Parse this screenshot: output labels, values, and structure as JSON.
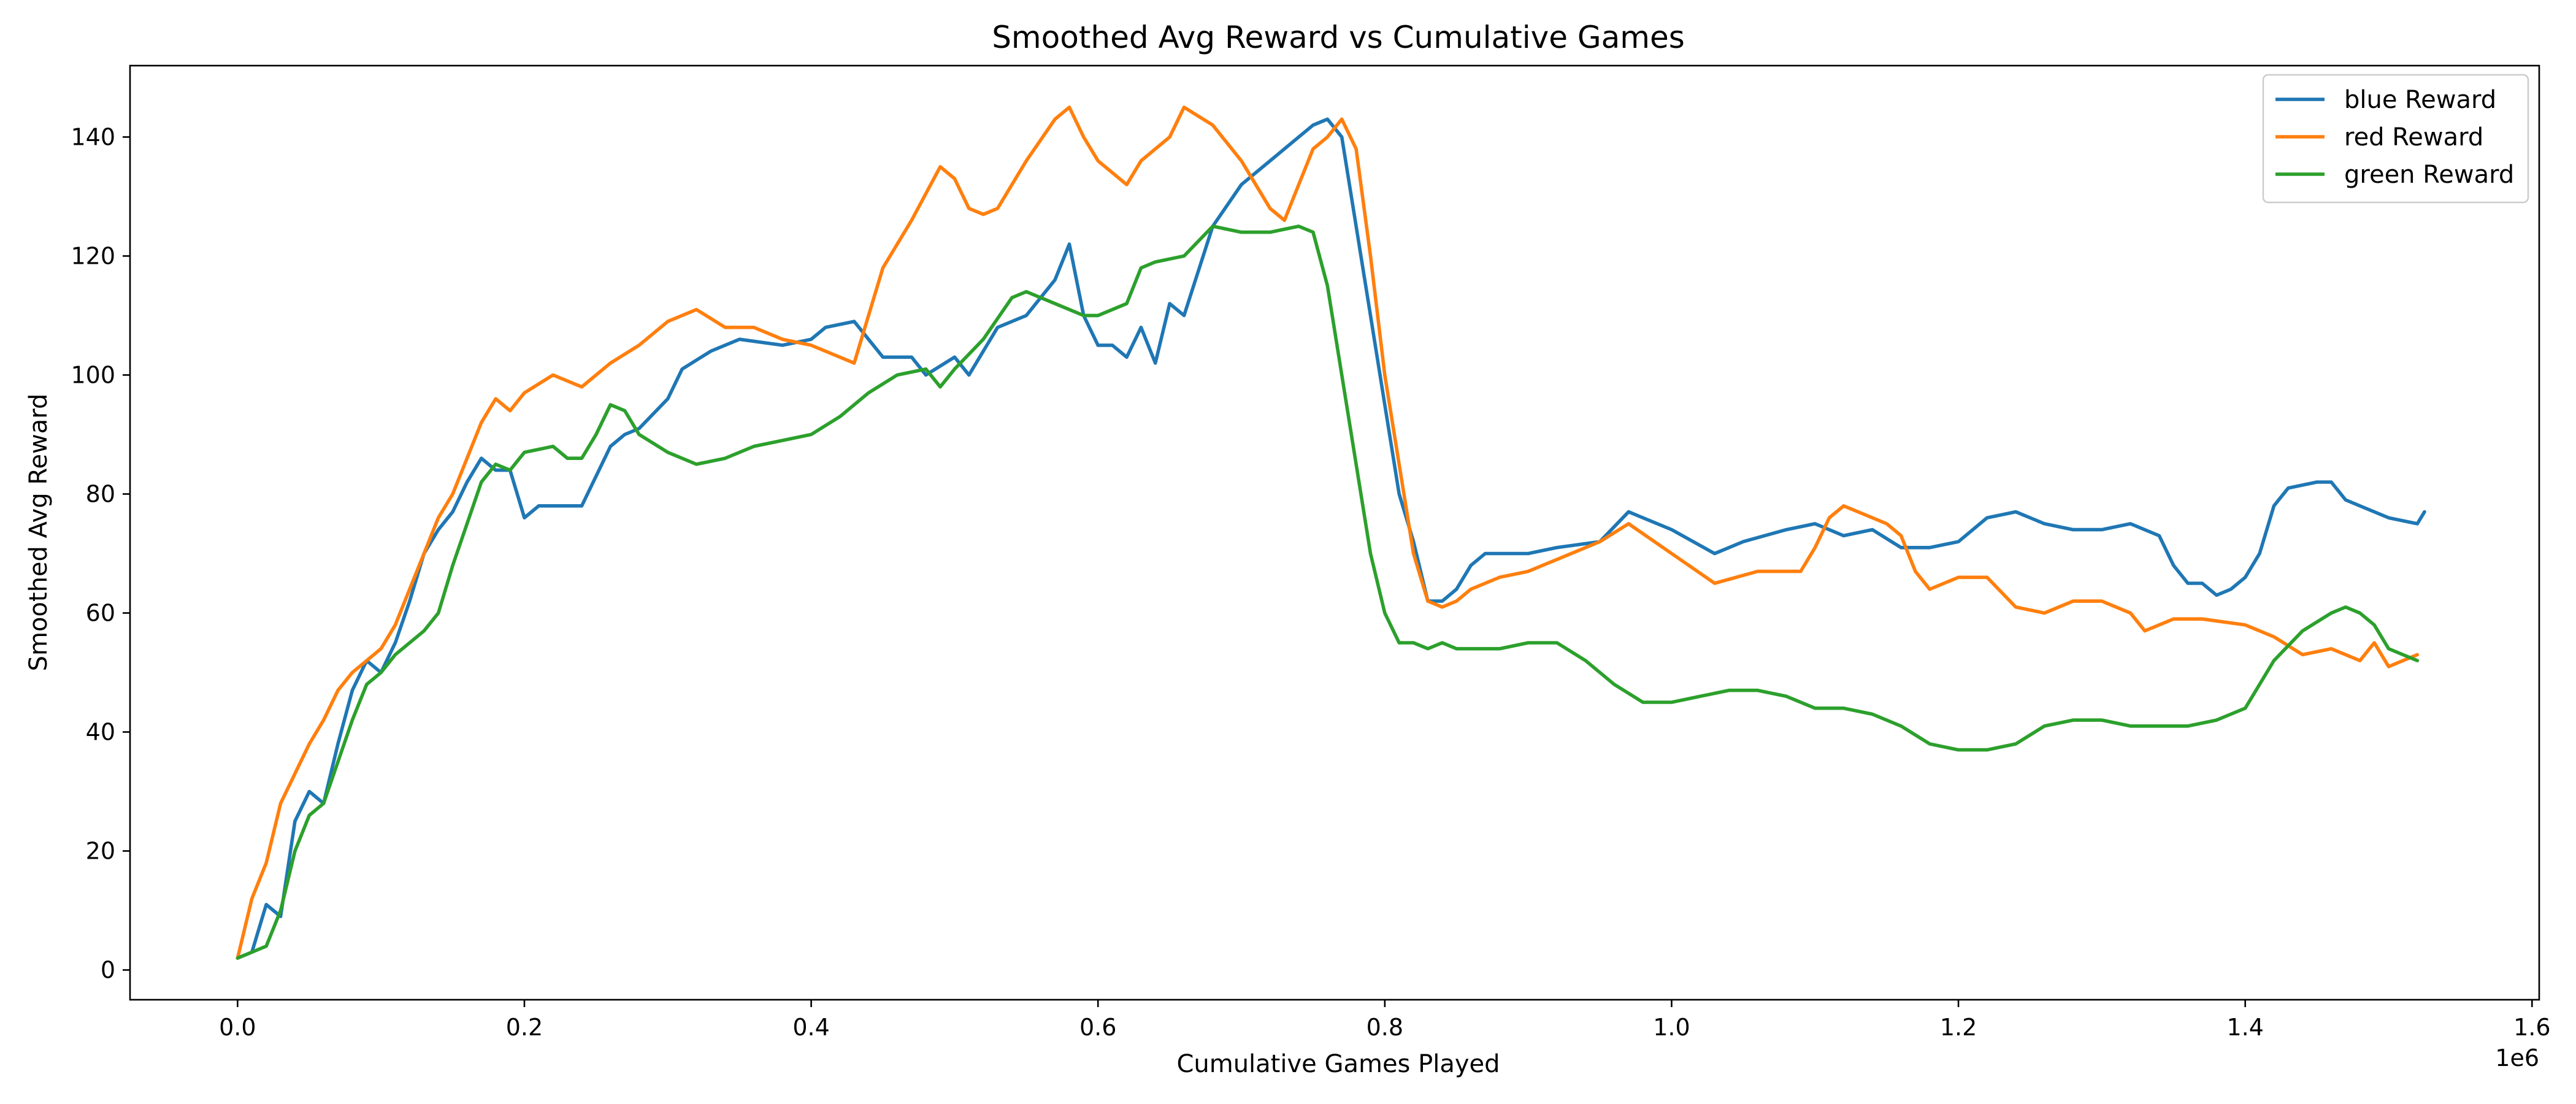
{
  "chart_data": {
    "type": "line",
    "title": "Smoothed Avg Reward vs Cumulative Games",
    "xlabel": "Cumulative Games Played",
    "ylabel": "Smoothed Avg Reward",
    "x_offset_label": "1e6",
    "xlim": [
      -0.075,
      1.605
    ],
    "ylim": [
      -5,
      152
    ],
    "x_ticks": [
      0.0,
      0.2,
      0.4,
      0.6,
      0.8,
      1.0,
      1.2,
      1.4,
      1.6
    ],
    "x_tick_labels": [
      "0.0",
      "0.2",
      "0.4",
      "0.6",
      "0.8",
      "1.0",
      "1.2",
      "1.4",
      "1.6"
    ],
    "y_ticks": [
      0,
      20,
      40,
      60,
      80,
      100,
      120,
      140
    ],
    "y_tick_labels": [
      "0",
      "20",
      "40",
      "60",
      "80",
      "100",
      "120",
      "140"
    ],
    "grid": false,
    "legend_position": "top-right",
    "series": [
      {
        "name": "blue Reward",
        "color": "#1f77b4",
        "x": [
          0.0,
          0.01,
          0.02,
          0.03,
          0.04,
          0.05,
          0.06,
          0.07,
          0.08,
          0.09,
          0.1,
          0.11,
          0.12,
          0.13,
          0.14,
          0.15,
          0.16,
          0.17,
          0.18,
          0.19,
          0.2,
          0.21,
          0.22,
          0.24,
          0.26,
          0.27,
          0.28,
          0.3,
          0.31,
          0.33,
          0.35,
          0.38,
          0.4,
          0.41,
          0.43,
          0.44,
          0.45,
          0.47,
          0.48,
          0.5,
          0.51,
          0.53,
          0.55,
          0.57,
          0.58,
          0.59,
          0.6,
          0.61,
          0.62,
          0.63,
          0.64,
          0.65,
          0.66,
          0.68,
          0.7,
          0.72,
          0.74,
          0.75,
          0.76,
          0.77,
          0.78,
          0.79,
          0.8,
          0.81,
          0.82,
          0.83,
          0.84,
          0.85,
          0.86,
          0.87,
          0.88,
          0.9,
          0.92,
          0.95,
          0.97,
          1.0,
          1.03,
          1.05,
          1.08,
          1.1,
          1.12,
          1.14,
          1.16,
          1.18,
          1.2,
          1.22,
          1.24,
          1.26,
          1.28,
          1.3,
          1.32,
          1.34,
          1.35,
          1.36,
          1.37,
          1.38,
          1.39,
          1.4,
          1.41,
          1.42,
          1.43,
          1.45,
          1.46,
          1.47,
          1.48,
          1.5,
          1.52,
          1.525
        ],
        "y": [
          2,
          3,
          11,
          9,
          25,
          30,
          28,
          38,
          47,
          52,
          50,
          55,
          62,
          70,
          74,
          77,
          82,
          86,
          84,
          84,
          76,
          78,
          78,
          78,
          88,
          90,
          91,
          96,
          101,
          104,
          106,
          105,
          106,
          108,
          109,
          106,
          103,
          103,
          100,
          103,
          100,
          108,
          110,
          116,
          122,
          110,
          105,
          105,
          103,
          108,
          102,
          112,
          110,
          125,
          132,
          136,
          140,
          142,
          143,
          140,
          125,
          110,
          95,
          80,
          72,
          62,
          62,
          64,
          68,
          70,
          70,
          70,
          71,
          72,
          77,
          74,
          70,
          72,
          74,
          75,
          73,
          74,
          71,
          71,
          72,
          76,
          77,
          75,
          74,
          74,
          75,
          73,
          68,
          65,
          65,
          63,
          64,
          66,
          70,
          78,
          81,
          82,
          82,
          79,
          78,
          76,
          75,
          77
        ]
      },
      {
        "name": "red Reward",
        "color": "#ff7f0e",
        "x": [
          0.0,
          0.01,
          0.02,
          0.03,
          0.04,
          0.05,
          0.06,
          0.07,
          0.08,
          0.09,
          0.1,
          0.11,
          0.12,
          0.13,
          0.14,
          0.15,
          0.16,
          0.17,
          0.18,
          0.19,
          0.2,
          0.22,
          0.24,
          0.26,
          0.28,
          0.3,
          0.32,
          0.34,
          0.36,
          0.38,
          0.4,
          0.42,
          0.43,
          0.45,
          0.47,
          0.49,
          0.5,
          0.51,
          0.52,
          0.53,
          0.55,
          0.57,
          0.58,
          0.59,
          0.6,
          0.62,
          0.63,
          0.65,
          0.66,
          0.68,
          0.7,
          0.71,
          0.72,
          0.73,
          0.74,
          0.75,
          0.76,
          0.77,
          0.78,
          0.79,
          0.8,
          0.81,
          0.82,
          0.83,
          0.84,
          0.85,
          0.86,
          0.88,
          0.9,
          0.92,
          0.95,
          0.97,
          1.0,
          1.03,
          1.06,
          1.09,
          1.1,
          1.11,
          1.12,
          1.14,
          1.15,
          1.16,
          1.17,
          1.18,
          1.2,
          1.22,
          1.24,
          1.26,
          1.28,
          1.3,
          1.32,
          1.33,
          1.35,
          1.37,
          1.4,
          1.42,
          1.44,
          1.46,
          1.48,
          1.49,
          1.5,
          1.52
        ],
        "y": [
          2,
          12,
          18,
          28,
          33,
          38,
          42,
          47,
          50,
          52,
          54,
          58,
          64,
          70,
          76,
          80,
          86,
          92,
          96,
          94,
          97,
          100,
          98,
          102,
          105,
          109,
          111,
          108,
          108,
          106,
          105,
          103,
          102,
          118,
          126,
          135,
          133,
          128,
          127,
          128,
          136,
          143,
          145,
          140,
          136,
          132,
          136,
          140,
          145,
          142,
          136,
          132,
          128,
          126,
          132,
          138,
          140,
          143,
          138,
          120,
          100,
          85,
          70,
          62,
          61,
          62,
          64,
          66,
          67,
          69,
          72,
          75,
          70,
          65,
          67,
          67,
          71,
          76,
          78,
          76,
          75,
          73,
          67,
          64,
          66,
          66,
          61,
          60,
          62,
          62,
          60,
          57,
          59,
          59,
          58,
          56,
          53,
          54,
          52,
          55,
          51,
          53
        ]
      },
      {
        "name": "green Reward",
        "color": "#2ca02c",
        "x": [
          0.0,
          0.01,
          0.02,
          0.03,
          0.04,
          0.05,
          0.06,
          0.07,
          0.08,
          0.09,
          0.1,
          0.11,
          0.12,
          0.13,
          0.14,
          0.15,
          0.16,
          0.17,
          0.18,
          0.19,
          0.2,
          0.22,
          0.23,
          0.24,
          0.25,
          0.26,
          0.27,
          0.28,
          0.3,
          0.32,
          0.34,
          0.36,
          0.38,
          0.4,
          0.42,
          0.44,
          0.46,
          0.48,
          0.49,
          0.5,
          0.52,
          0.54,
          0.55,
          0.57,
          0.59,
          0.6,
          0.62,
          0.63,
          0.64,
          0.66,
          0.68,
          0.7,
          0.72,
          0.74,
          0.75,
          0.76,
          0.77,
          0.78,
          0.79,
          0.8,
          0.81,
          0.82,
          0.83,
          0.84,
          0.85,
          0.86,
          0.88,
          0.9,
          0.92,
          0.94,
          0.96,
          0.98,
          1.0,
          1.02,
          1.04,
          1.06,
          1.08,
          1.1,
          1.12,
          1.14,
          1.16,
          1.18,
          1.2,
          1.22,
          1.24,
          1.26,
          1.28,
          1.3,
          1.32,
          1.34,
          1.36,
          1.38,
          1.4,
          1.42,
          1.44,
          1.46,
          1.47,
          1.48,
          1.49,
          1.5,
          1.51,
          1.52
        ],
        "y": [
          2,
          3,
          4,
          10,
          20,
          26,
          28,
          35,
          42,
          48,
          50,
          53,
          55,
          57,
          60,
          68,
          75,
          82,
          85,
          84,
          87,
          88,
          86,
          86,
          90,
          95,
          94,
          90,
          87,
          85,
          86,
          88,
          89,
          90,
          93,
          97,
          100,
          101,
          98,
          101,
          106,
          113,
          114,
          112,
          110,
          110,
          112,
          118,
          119,
          120,
          125,
          124,
          124,
          125,
          124,
          115,
          100,
          85,
          70,
          60,
          55,
          55,
          54,
          55,
          54,
          54,
          54,
          55,
          55,
          52,
          48,
          45,
          45,
          46,
          47,
          47,
          46,
          44,
          44,
          43,
          41,
          38,
          37,
          37,
          38,
          41,
          42,
          42,
          41,
          41,
          41,
          42,
          44,
          52,
          57,
          60,
          61,
          60,
          58,
          54,
          53,
          52
        ]
      }
    ]
  }
}
